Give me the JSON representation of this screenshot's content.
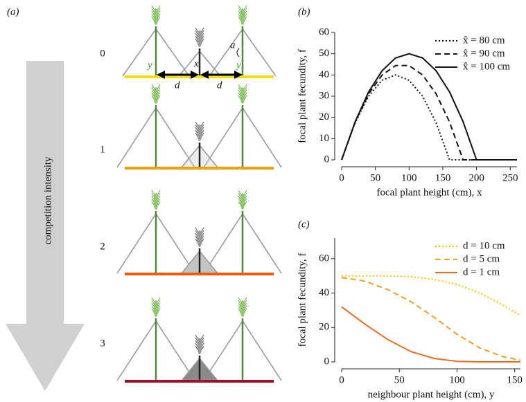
{
  "panel_a": {
    "panel_label": "(a)",
    "arrow_label": "competition intensity",
    "rows": [
      "0",
      "1",
      "2",
      "3"
    ],
    "symbols": {
      "y_left": "y",
      "x": "x",
      "a": "a",
      "d_left": "d",
      "d_right": "d",
      "y_right": "y"
    }
  },
  "chart_data": [
    {
      "type": "line",
      "panel_label": "(b)",
      "xlabel": "focal plant height (cm), x",
      "ylabel": "focal plant fecundity, f",
      "x": [
        0,
        20,
        40,
        60,
        80,
        100,
        120,
        140,
        160,
        180,
        200,
        220,
        240,
        260
      ],
      "xlim": [
        0,
        260
      ],
      "xticks": [
        0,
        50,
        100,
        150,
        200,
        250
      ],
      "ylim": [
        0,
        60
      ],
      "yticks": [
        0,
        10,
        20,
        30,
        40,
        50,
        60
      ],
      "legend": "upper right",
      "series": [
        {
          "name": "x̂ = 80 cm",
          "color": "#111111",
          "linestyle": "dotted",
          "values": [
            0,
            17.5,
            30,
            37.5,
            40,
            37.5,
            30,
            17.5,
            0,
            0,
            0,
            0,
            0,
            0
          ]
        },
        {
          "name": "x̂ = 90 cm",
          "color": "#111111",
          "linestyle": "dashed",
          "values": [
            0,
            17.8,
            31.1,
            40,
            44.4,
            44.4,
            40,
            31.1,
            17.8,
            0,
            0,
            0,
            0,
            0
          ]
        },
        {
          "name": "x̂ = 100 cm",
          "color": "#111111",
          "linestyle": "solid",
          "values": [
            0,
            18,
            32,
            42,
            48,
            50,
            48,
            42,
            32,
            18,
            0,
            0,
            0,
            0
          ]
        }
      ]
    },
    {
      "type": "line",
      "panel_label": "(c)",
      "xlabel": "neighbour plant height (cm), y",
      "ylabel": "focal plant fecundity, f",
      "x": [
        0,
        20,
        40,
        60,
        80,
        100,
        120,
        140,
        155
      ],
      "xlim": [
        0,
        155
      ],
      "xticks": [
        0,
        50,
        100,
        150
      ],
      "ylim": [
        0,
        72
      ],
      "yticks": [
        0,
        20,
        40,
        60
      ],
      "legend": "upper right",
      "series": [
        {
          "name": "d = 10 cm",
          "color": "#f5c400",
          "linestyle": "dotted",
          "values": [
            50,
            50,
            50,
            49.5,
            48,
            45,
            40,
            33,
            27
          ]
        },
        {
          "name": "d = 5 cm",
          "color": "#f0a020",
          "linestyle": "dashed",
          "values": [
            49,
            47,
            42,
            35,
            26,
            16,
            8,
            3,
            1
          ]
        },
        {
          "name": "d = 1 cm",
          "color": "#f06a20",
          "linestyle": "solid",
          "values": [
            32,
            22,
            13,
            6,
            2,
            0.3,
            0,
            0,
            0
          ]
        }
      ]
    }
  ]
}
